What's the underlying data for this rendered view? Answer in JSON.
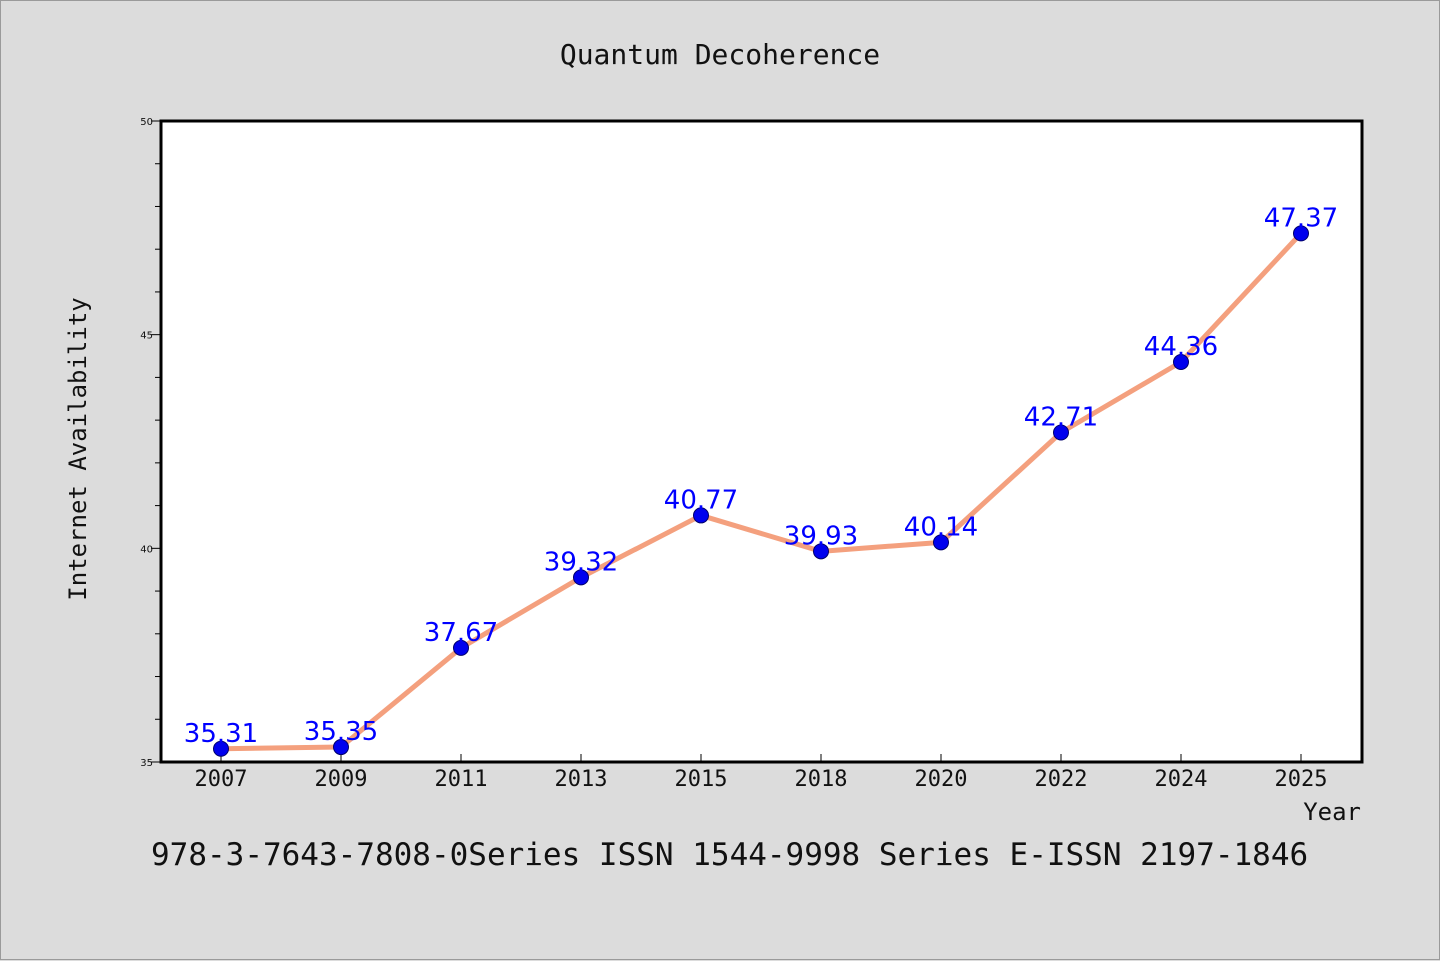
{
  "chart_data": {
    "type": "line",
    "title": "Quantum Decoherence",
    "xlabel": "Year",
    "ylabel": "Internet Availability",
    "categories": [
      "2007",
      "2009",
      "2011",
      "2013",
      "2015",
      "2018",
      "2020",
      "2022",
      "2024",
      "2025"
    ],
    "series": [
      {
        "values": [
          35.31,
          35.35,
          37.67,
          39.32,
          40.77,
          39.93,
          40.14,
          42.71,
          44.36,
          47.37
        ],
        "data_labels": [
          "35.31",
          "35.35",
          "37.67",
          "39.32",
          "40.77",
          "39.93",
          "40.14",
          "42.71",
          "44.36",
          "47.37"
        ],
        "line_color": "#f4a07e",
        "marker_color": "#0000ee"
      }
    ],
    "ylim": [
      35,
      50
    ],
    "yticks": [
      "35",
      "40",
      "45",
      "50"
    ],
    "grid": false,
    "legend": "none",
    "footer": "978-3-7643-7808-0Series ISSN 1544-9998 Series E-ISSN 2197-1846"
  }
}
